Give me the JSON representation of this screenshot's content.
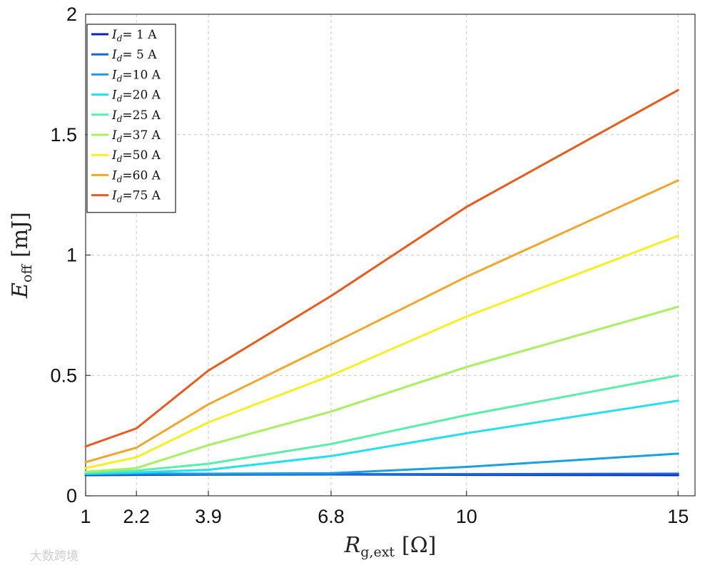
{
  "chart_data": {
    "type": "line",
    "x": [
      1,
      2.2,
      3.9,
      6.8,
      10,
      15
    ],
    "xticks": [
      "1",
      "2.2",
      "3.9",
      "6.8",
      "10",
      "15"
    ],
    "yticks": [
      "0",
      "0.5",
      "1",
      "1.5",
      "2"
    ],
    "ylim": [
      0,
      2
    ],
    "grid": true,
    "legend_position": "top-left",
    "xlabel": {
      "main": "R",
      "sub": "g,ext",
      "unit": "[Ω]"
    },
    "ylabel": {
      "main": "E",
      "sub": "off",
      "unit": "[mJ]"
    },
    "series": [
      {
        "symbol": "I",
        "sub": "d",
        "label": "= 1 A",
        "color": "#0a1fcc",
        "values": [
          0.086,
          0.087,
          0.088,
          0.089,
          0.087,
          0.086
        ]
      },
      {
        "symbol": "I",
        "sub": "d",
        "label": "= 5 A",
        "color": "#1767e3",
        "values": [
          0.088,
          0.089,
          0.09,
          0.09,
          0.09,
          0.092
        ]
      },
      {
        "symbol": "I",
        "sub": "d",
        "label": "=10 A",
        "color": "#1aa0e0",
        "values": [
          0.09,
          0.093,
          0.092,
          0.094,
          0.12,
          0.175
        ]
      },
      {
        "symbol": "I",
        "sub": "d",
        "label": "=20 A",
        "color": "#22e0ee",
        "values": [
          0.092,
          0.097,
          0.108,
          0.165,
          0.26,
          0.395
        ]
      },
      {
        "symbol": "I",
        "sub": "d",
        "label": "=25 A",
        "color": "#5aefa8",
        "values": [
          0.097,
          0.105,
          0.133,
          0.215,
          0.335,
          0.5
        ]
      },
      {
        "symbol": "I",
        "sub": "d",
        "label": "=37 A",
        "color": "#a8f060",
        "values": [
          0.1,
          0.115,
          0.21,
          0.35,
          0.535,
          0.785
        ]
      },
      {
        "symbol": "I",
        "sub": "d",
        "label": "=50 A",
        "color": "#f6ef22",
        "values": [
          0.115,
          0.16,
          0.305,
          0.5,
          0.745,
          1.08
        ]
      },
      {
        "symbol": "I",
        "sub": "d",
        "label": "=60 A",
        "color": "#f0a72c",
        "values": [
          0.14,
          0.2,
          0.38,
          0.63,
          0.91,
          1.31
        ]
      },
      {
        "symbol": "I",
        "sub": "d",
        "label": "=75 A",
        "color": "#ea5a1c",
        "values": [
          0.205,
          0.28,
          0.52,
          0.83,
          1.2,
          1.685
        ]
      }
    ]
  },
  "watermark": "大数跨境"
}
